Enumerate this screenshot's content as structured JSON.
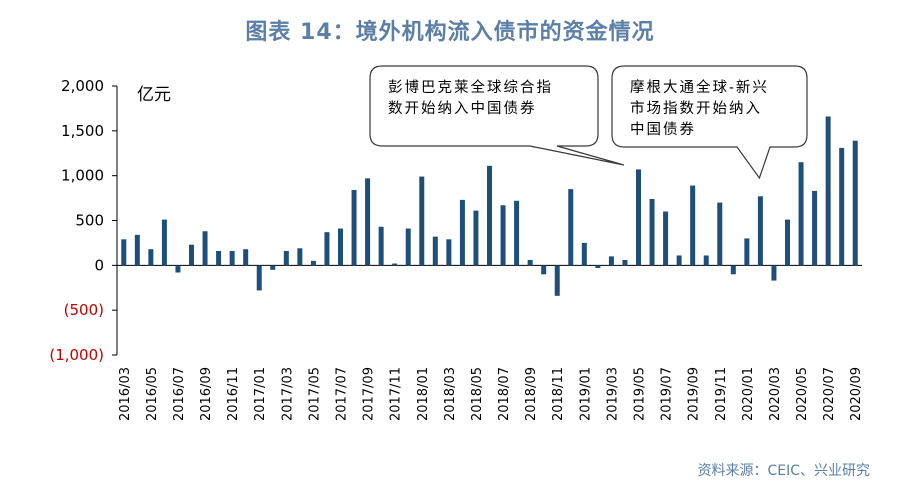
{
  "title": "图表 14：境外机构流入债市的资金情况",
  "source": "资料来源：CEIC、兴业研究",
  "chart_data": {
    "type": "bar",
    "unit_label": "亿元",
    "ylim": [
      -1000,
      2000
    ],
    "yticks": [
      {
        "value": 2000,
        "label": "2,000"
      },
      {
        "value": 1500,
        "label": "1,500"
      },
      {
        "value": 1000,
        "label": "1,000"
      },
      {
        "value": 500,
        "label": "500"
      },
      {
        "value": 0,
        "label": "0"
      },
      {
        "value": -500,
        "label": "(500)"
      },
      {
        "value": -1000,
        "label": "(1,000)"
      }
    ],
    "categories": [
      "2016/03",
      "2016/04",
      "2016/05",
      "2016/06",
      "2016/07",
      "2016/08",
      "2016/09",
      "2016/10",
      "2016/11",
      "2016/12",
      "2017/01",
      "2017/02",
      "2017/03",
      "2017/04",
      "2017/05",
      "2017/06",
      "2017/07",
      "2017/08",
      "2017/09",
      "2017/10",
      "2017/11",
      "2017/12",
      "2018/01",
      "2018/02",
      "2018/03",
      "2018/04",
      "2018/05",
      "2018/06",
      "2018/07",
      "2018/08",
      "2018/09",
      "2018/10",
      "2018/11",
      "2018/12",
      "2019/01",
      "2019/02",
      "2019/03",
      "2019/04",
      "2019/05",
      "2019/06",
      "2019/07",
      "2019/08",
      "2019/09",
      "2019/10",
      "2019/11",
      "2019/12",
      "2020/01",
      "2020/02",
      "2020/03",
      "2020/04",
      "2020/05",
      "2020/06",
      "2020/07",
      "2020/08",
      "2020/09"
    ],
    "xtick_labels": [
      "2016/03",
      "2016/05",
      "2016/07",
      "2016/09",
      "2016/11",
      "2017/01",
      "2017/03",
      "2017/05",
      "2017/07",
      "2017/09",
      "2017/11",
      "2018/01",
      "2018/03",
      "2018/05",
      "2018/07",
      "2018/09",
      "2018/11",
      "2019/01",
      "2019/03",
      "2019/05",
      "2019/07",
      "2019/09",
      "2019/11",
      "2020/01",
      "2020/03",
      "2020/05",
      "2020/07",
      "2020/09"
    ],
    "values": [
      290,
      340,
      180,
      510,
      -80,
      230,
      380,
      160,
      160,
      180,
      -280,
      -50,
      160,
      190,
      50,
      370,
      410,
      840,
      970,
      430,
      20,
      410,
      990,
      320,
      290,
      730,
      610,
      1110,
      670,
      720,
      60,
      -100,
      -340,
      850,
      250,
      -30,
      100,
      60,
      1070,
      740,
      600,
      110,
      890,
      110,
      700,
      -100,
      300,
      770,
      -170,
      510,
      1150,
      830,
      1660,
      1310,
      1390
    ],
    "bar_color": "#1f4e79",
    "grid": false,
    "annotations": [
      {
        "lines": [
          "彭博巴克莱全球综合指",
          "数开始纳入中国债券"
        ],
        "target": "2019/04"
      },
      {
        "lines": [
          "摩根大通全球-新兴",
          "市场指数开始纳入",
          "中国债券"
        ],
        "target": "2020/02"
      }
    ]
  }
}
